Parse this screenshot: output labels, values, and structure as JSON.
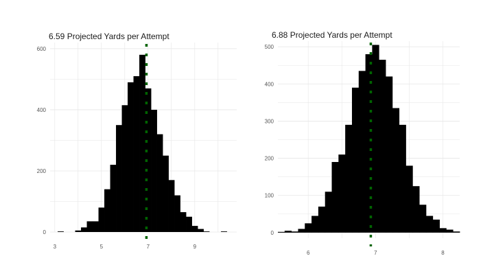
{
  "colors": {
    "bar": "#000000",
    "mean_line": "#006400",
    "grid": "#e6e6e6",
    "tick_text": "#555555",
    "background": "#ffffff"
  },
  "chart_data": [
    {
      "type": "bar",
      "title": "6.59 Projected Yards per Attempt",
      "xlabel": "",
      "ylabel": "",
      "xlim": [
        2.8,
        10.8
      ],
      "ylim": [
        0,
        620
      ],
      "x_ticks": [
        3,
        5,
        7,
        9
      ],
      "x_tick_labels": [
        "3",
        "5",
        "7",
        "9"
      ],
      "y_ticks": [
        0,
        200,
        400,
        600
      ],
      "y_tick_labels": [
        "0",
        "200",
        "400",
        "600"
      ],
      "bin_width": 0.25,
      "bins": [
        {
          "x": 3.25,
          "count": 2
        },
        {
          "x": 3.5,
          "count": 0
        },
        {
          "x": 3.75,
          "count": 0
        },
        {
          "x": 4.0,
          "count": 5
        },
        {
          "x": 4.25,
          "count": 15
        },
        {
          "x": 4.5,
          "count": 35
        },
        {
          "x": 4.75,
          "count": 35
        },
        {
          "x": 5.0,
          "count": 80
        },
        {
          "x": 5.25,
          "count": 140
        },
        {
          "x": 5.5,
          "count": 220
        },
        {
          "x": 5.75,
          "count": 350
        },
        {
          "x": 6.0,
          "count": 415
        },
        {
          "x": 6.25,
          "count": 490
        },
        {
          "x": 6.5,
          "count": 510
        },
        {
          "x": 6.75,
          "count": 580
        },
        {
          "x": 7.0,
          "count": 470
        },
        {
          "x": 7.25,
          "count": 400
        },
        {
          "x": 7.5,
          "count": 320
        },
        {
          "x": 7.75,
          "count": 250
        },
        {
          "x": 8.0,
          "count": 170
        },
        {
          "x": 8.25,
          "count": 120
        },
        {
          "x": 8.5,
          "count": 65
        },
        {
          "x": 8.75,
          "count": 50
        },
        {
          "x": 9.0,
          "count": 20
        },
        {
          "x": 9.25,
          "count": 10
        },
        {
          "x": 9.5,
          "count": 2
        },
        {
          "x": 9.75,
          "count": 0
        },
        {
          "x": 10.0,
          "count": 0
        },
        {
          "x": 10.25,
          "count": 2
        }
      ],
      "mean_line": {
        "x": 6.93,
        "style": "dotted"
      },
      "grid": true
    },
    {
      "type": "bar",
      "title": "6.88 Projected Yards per Attempt",
      "xlabel": "",
      "ylabel": "",
      "xlim": [
        5.55,
        8.25
      ],
      "ylim": [
        -15,
        515
      ],
      "x_ticks": [
        6,
        7,
        8
      ],
      "x_tick_labels": [
        "6",
        "7",
        "8"
      ],
      "y_ticks": [
        0,
        100,
        200,
        300,
        400,
        500
      ],
      "y_tick_labels": [
        "0",
        "100",
        "200",
        "300",
        "400",
        "500"
      ],
      "bin_width": 0.1,
      "bins": [
        {
          "x": 5.6,
          "count": 2
        },
        {
          "x": 5.7,
          "count": 5
        },
        {
          "x": 5.8,
          "count": 3
        },
        {
          "x": 5.9,
          "count": 10
        },
        {
          "x": 6.0,
          "count": 25
        },
        {
          "x": 6.1,
          "count": 45
        },
        {
          "x": 6.2,
          "count": 70
        },
        {
          "x": 6.3,
          "count": 110
        },
        {
          "x": 6.4,
          "count": 190
        },
        {
          "x": 6.5,
          "count": 210
        },
        {
          "x": 6.6,
          "count": 290
        },
        {
          "x": 6.7,
          "count": 390
        },
        {
          "x": 6.8,
          "count": 435
        },
        {
          "x": 6.9,
          "count": 480
        },
        {
          "x": 7.0,
          "count": 505
        },
        {
          "x": 7.1,
          "count": 465
        },
        {
          "x": 7.2,
          "count": 420
        },
        {
          "x": 7.3,
          "count": 335
        },
        {
          "x": 7.4,
          "count": 290
        },
        {
          "x": 7.5,
          "count": 180
        },
        {
          "x": 7.6,
          "count": 125
        },
        {
          "x": 7.7,
          "count": 75
        },
        {
          "x": 7.8,
          "count": 45
        },
        {
          "x": 7.9,
          "count": 35
        },
        {
          "x": 8.0,
          "count": 12
        },
        {
          "x": 8.1,
          "count": 8
        },
        {
          "x": 8.2,
          "count": 3
        }
      ],
      "mean_line": {
        "x": 6.93,
        "style": "dotted"
      },
      "grid": true
    }
  ]
}
